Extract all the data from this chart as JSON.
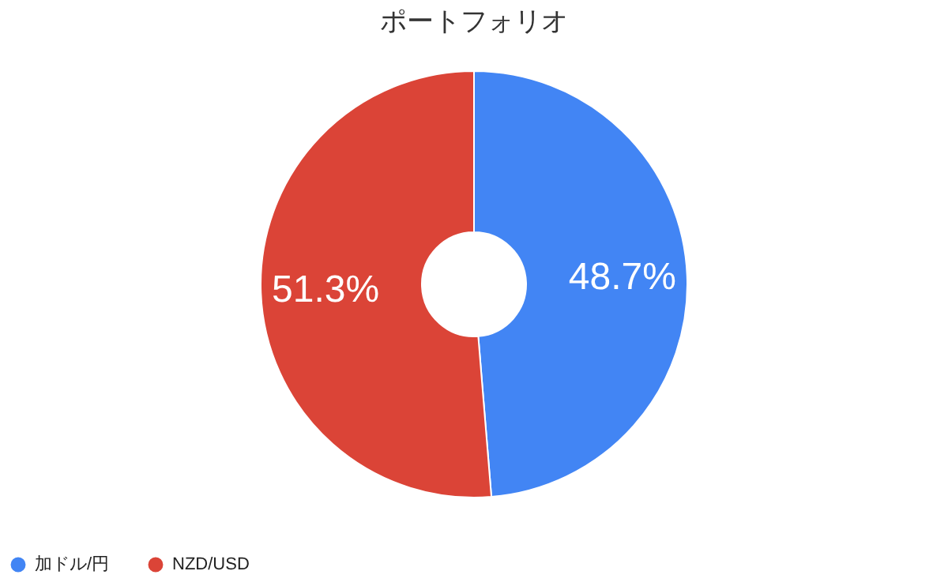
{
  "chart_data": {
    "type": "donut",
    "title": "ポートフォリオ",
    "categories": [
      "加ドル/円",
      "NZD/USD"
    ],
    "values": [
      48.7,
      51.3
    ],
    "colors": [
      "#4285f4",
      "#db4437"
    ],
    "value_labels": [
      "48.7%",
      "51.3%"
    ],
    "legend": "bottom"
  }
}
